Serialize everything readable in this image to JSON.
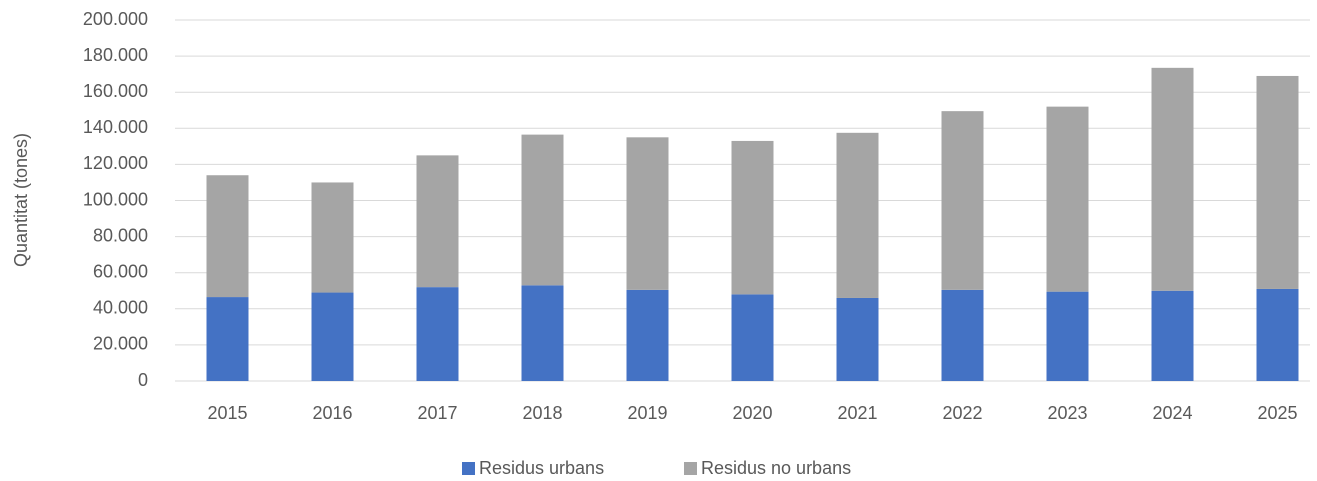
{
  "chart_data": {
    "type": "stacked_bar",
    "y_label": "Quantitat (tones)",
    "categories": [
      "2015",
      "2016",
      "2017",
      "2018",
      "2019",
      "2020",
      "2021",
      "2022",
      "2023",
      "2024",
      "2025"
    ],
    "series": [
      {
        "name": "Residus urbans",
        "color": "#4472c4",
        "values": [
          46500,
          49000,
          52000,
          53000,
          50500,
          48000,
          46000,
          50500,
          49500,
          50000,
          51000
        ]
      },
      {
        "name": "Residus no urbans",
        "color": "#a5a5a5",
        "values": [
          67500,
          61000,
          73000,
          83500,
          84500,
          85000,
          91500,
          99000,
          102500,
          123500,
          118000
        ]
      }
    ],
    "ylim": [
      0,
      200000
    ],
    "yticks": [
      0,
      {
        "value": 20000,
        "label": "20.000"
      },
      {
        "value": 40000,
        "label": "40.000"
      },
      {
        "value": 60000,
        "label": "60.000"
      },
      {
        "value": 80000,
        "label": "80.000"
      },
      {
        "value": 100000,
        "label": "100.000"
      },
      {
        "value": 120000,
        "label": "120.000"
      },
      {
        "value": 140000,
        "label": "140.000"
      },
      {
        "value": 160000,
        "label": "160.000"
      },
      {
        "value": 180000,
        "label": "180.000"
      },
      {
        "value": 200000,
        "label": "200.000"
      }
    ],
    "grid": true,
    "legend": "bottom"
  }
}
